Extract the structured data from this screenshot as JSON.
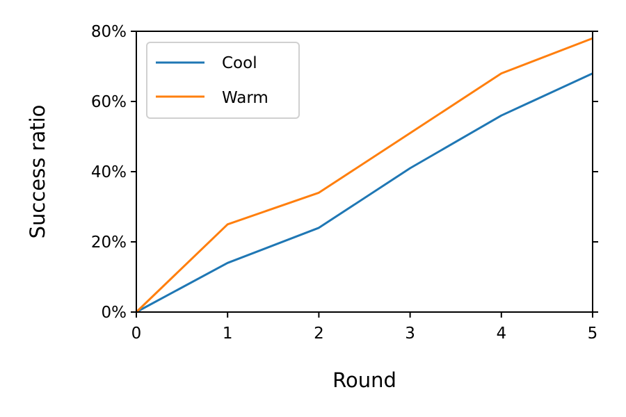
{
  "chart_data": {
    "type": "line",
    "title": "",
    "xlabel": "Round",
    "ylabel": "Success ratio",
    "x": [
      0,
      1,
      2,
      3,
      4,
      5
    ],
    "xlim": [
      0,
      5
    ],
    "ylim": [
      0,
      80
    ],
    "x_ticks": [
      "0",
      "1",
      "2",
      "3",
      "4",
      "5"
    ],
    "y_ticks": [
      "0%",
      "20%",
      "40%",
      "60%",
      "80%"
    ],
    "grid": false,
    "legend_position": "top-left",
    "series": [
      {
        "name": "Cool",
        "color": "#1f77b4",
        "values": [
          0,
          14,
          24,
          41,
          56,
          68
        ]
      },
      {
        "name": "Warm",
        "color": "#ff7f0e",
        "values": [
          0,
          25,
          34,
          51,
          68,
          78
        ]
      }
    ]
  }
}
